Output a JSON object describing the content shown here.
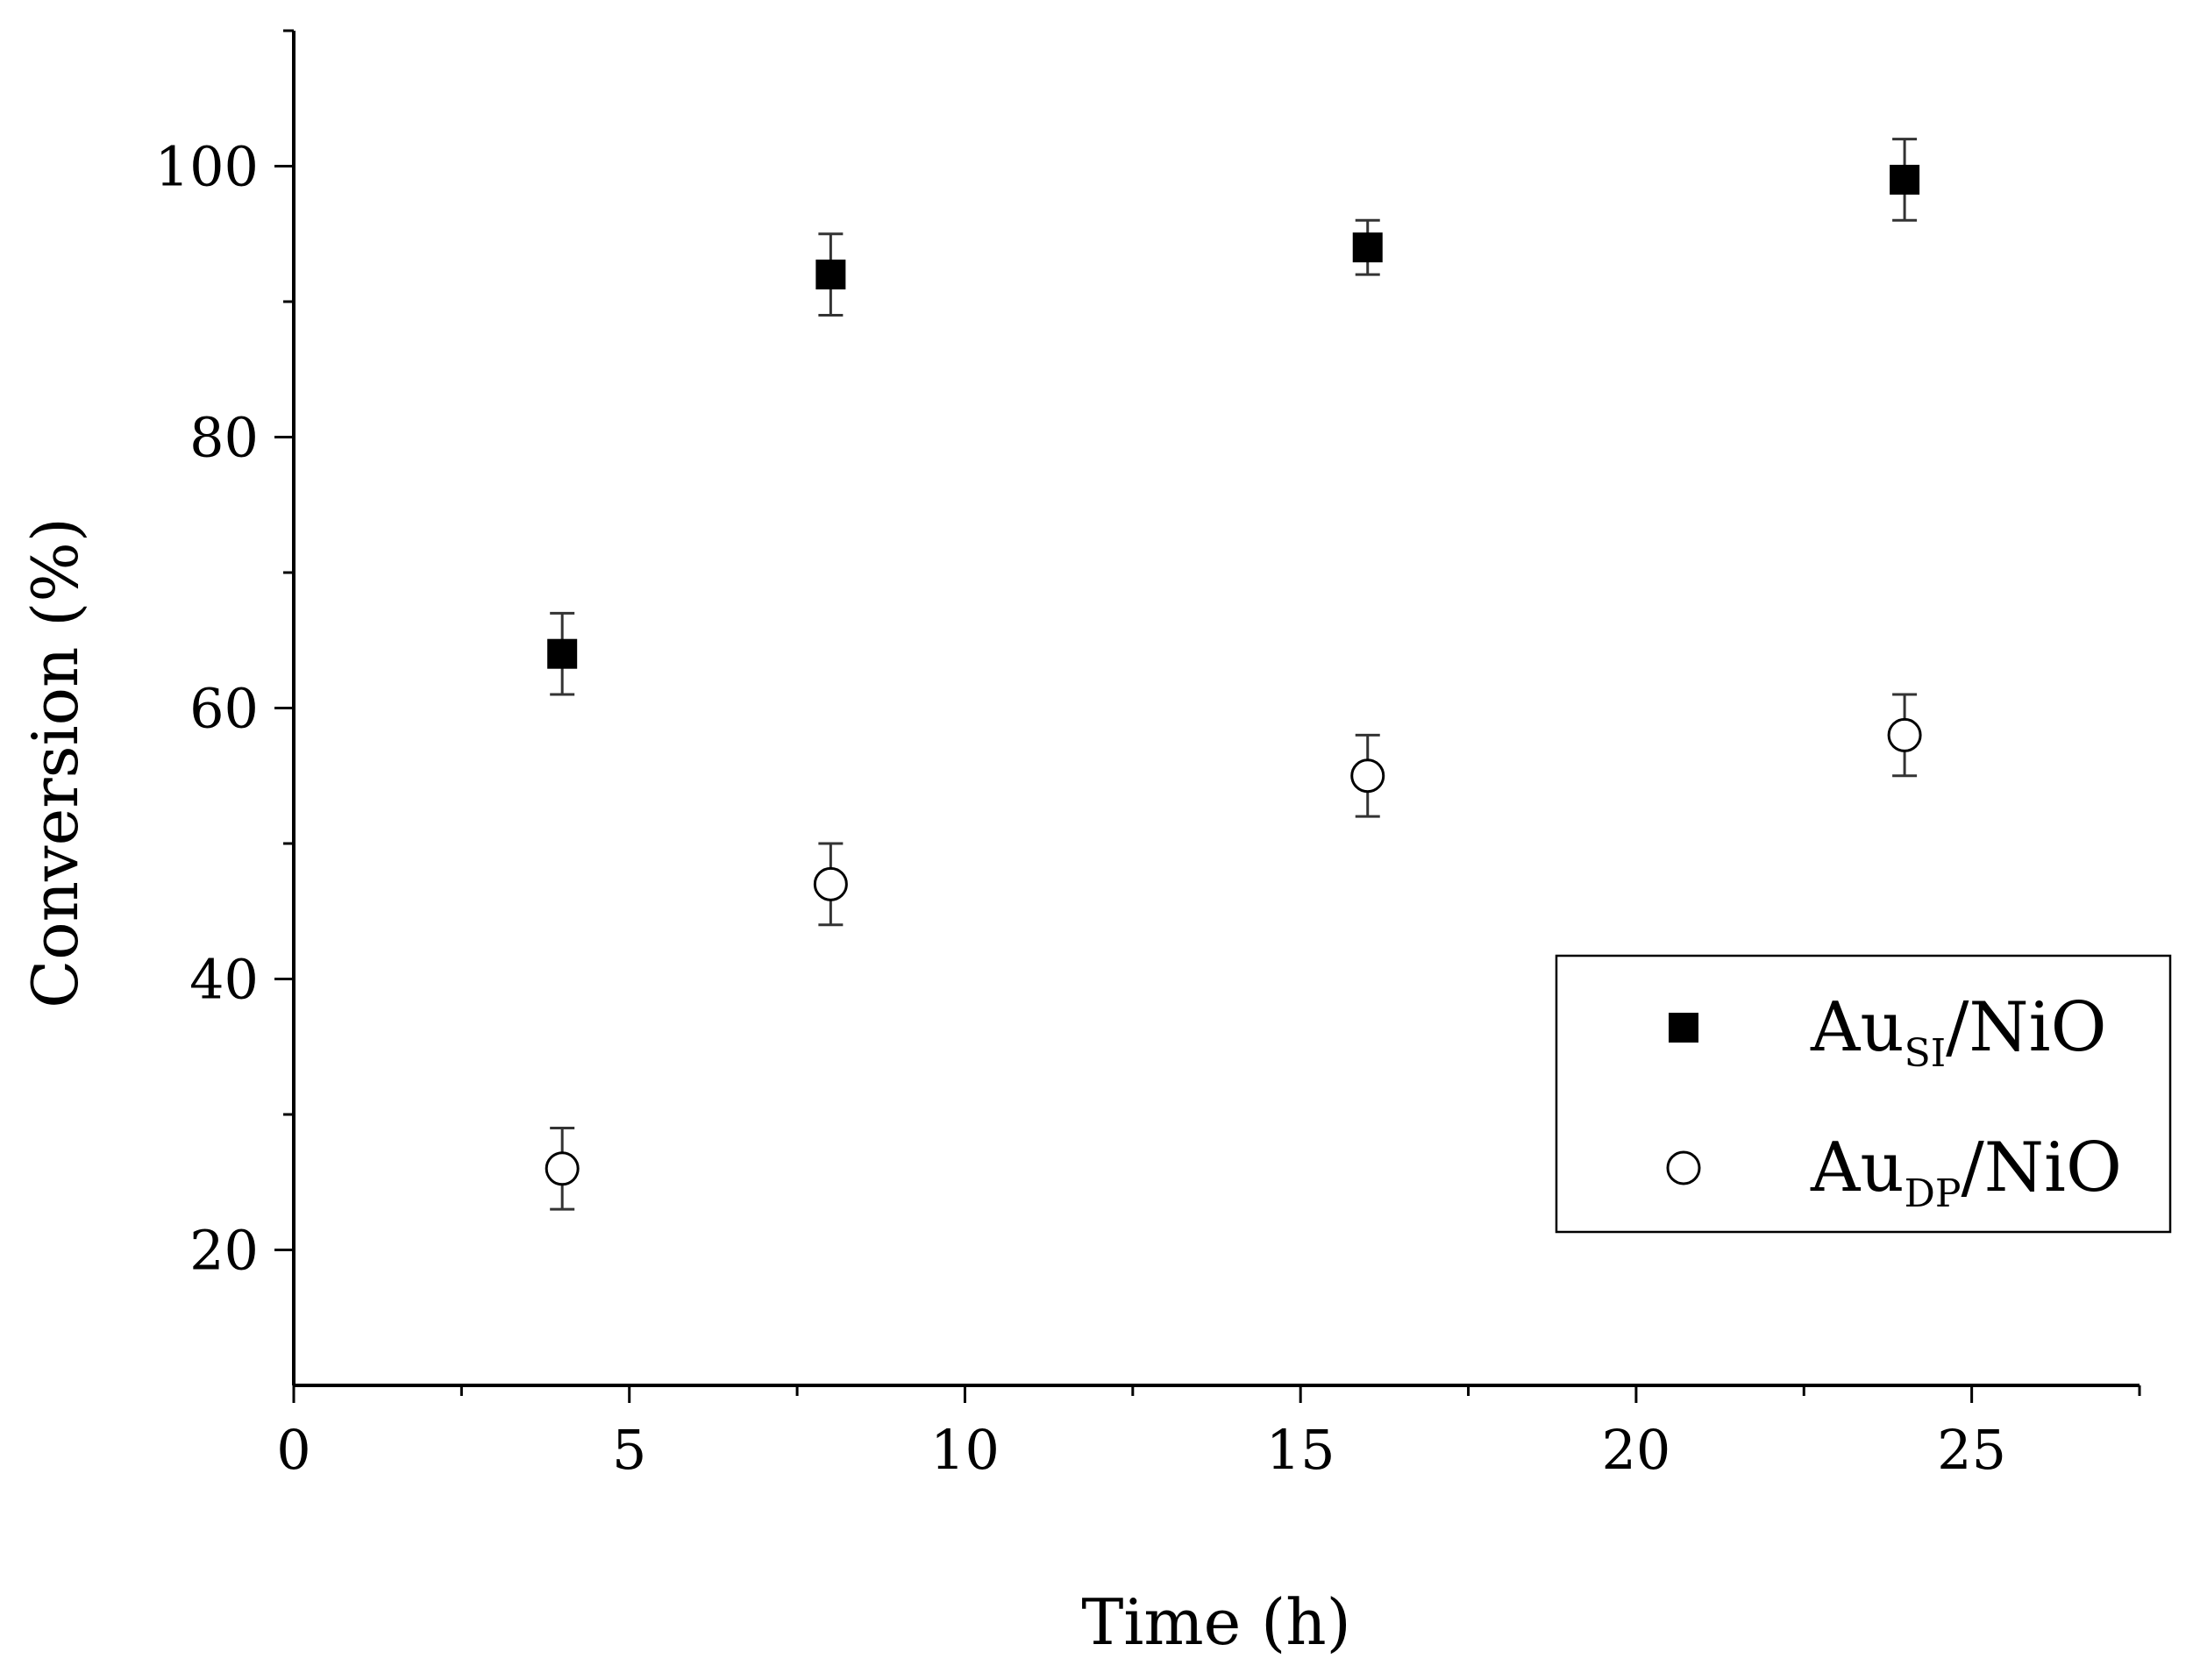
{
  "chart_data": {
    "type": "scatter",
    "title": "",
    "xlabel": "Time (h)",
    "ylabel": "Conversion (%)",
    "xlim": [
      0,
      27.5
    ],
    "ylim": [
      10,
      110
    ],
    "x_ticks": [
      0,
      5,
      10,
      15,
      20,
      25
    ],
    "x_tick_labels": [
      "0",
      "5",
      "10",
      "15",
      "20",
      "25"
    ],
    "y_ticks": [
      20,
      40,
      60,
      80,
      100
    ],
    "y_tick_labels": [
      "20",
      "40",
      "60",
      "80",
      "100"
    ],
    "grid": false,
    "legend_position": "lower-right",
    "series": [
      {
        "name": "Au",
        "name_subscript": "SI",
        "name_suffix": "/NiO",
        "marker": "filled-square",
        "color": "#000000",
        "x": [
          4,
          8,
          16,
          24
        ],
        "y": [
          64,
          92,
          94,
          99
        ],
        "error": [
          3,
          3,
          2,
          3
        ]
      },
      {
        "name": "Au",
        "name_subscript": "DP",
        "name_suffix": "/NiO",
        "marker": "open-circle",
        "color": "#000000",
        "x": [
          4,
          8,
          16,
          24
        ],
        "y": [
          26,
          47,
          55,
          58
        ],
        "error": [
          3,
          3,
          3,
          3
        ]
      }
    ]
  }
}
